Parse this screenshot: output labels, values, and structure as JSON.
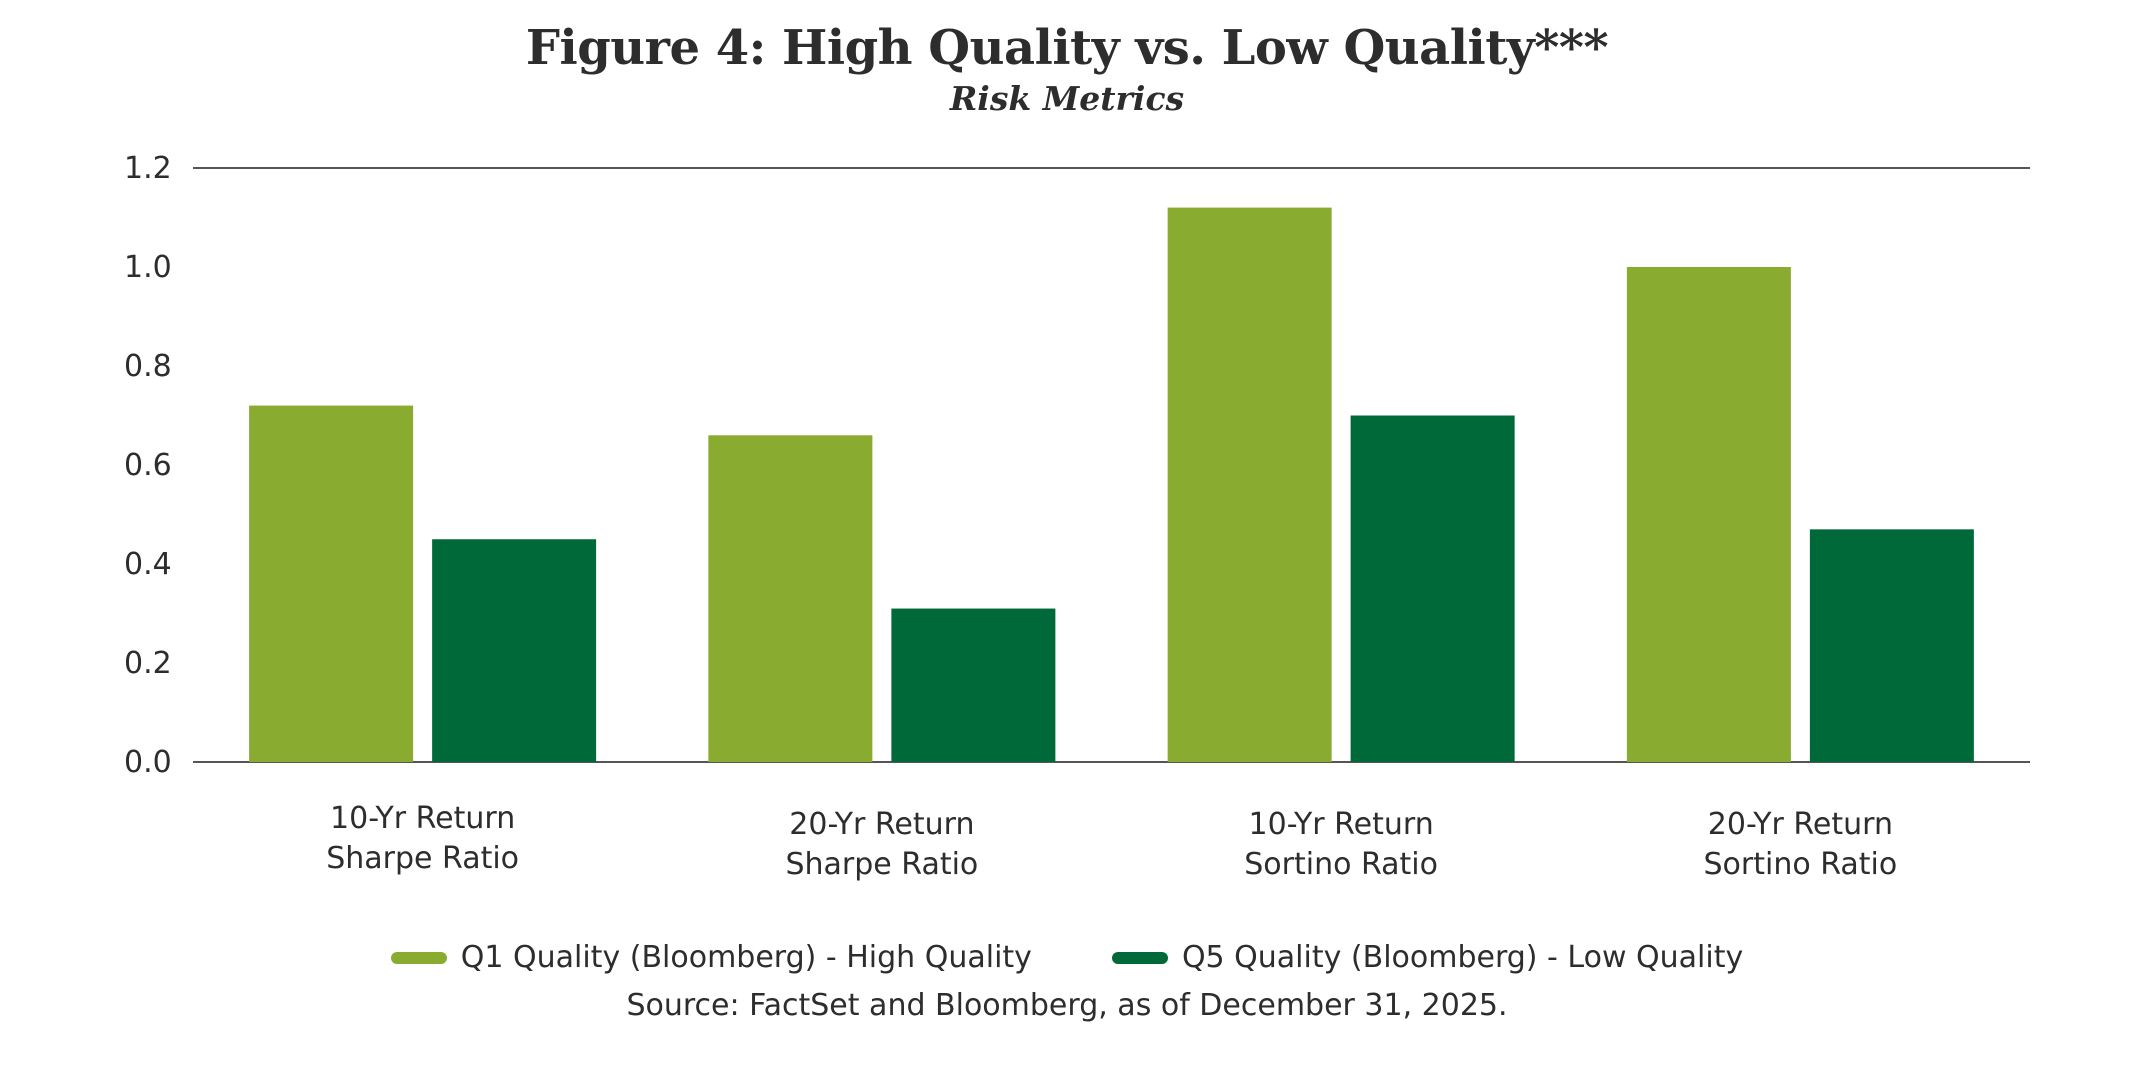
{
  "chart_data": {
    "type": "bar",
    "title": "Figure 4: High Quality vs. Low Quality***",
    "subtitle": "Risk Metrics",
    "categories": [
      [
        "10-Yr Return",
        "Sharpe Ratio"
      ],
      [
        "20-Yr Return",
        "Sharpe Ratio"
      ],
      [
        "10-Yr Return",
        "Sortino Ratio"
      ],
      [
        "20-Yr Return",
        "Sortino Ratio"
      ]
    ],
    "series": [
      {
        "name": "Q1 Quality (Bloomberg) - High Quality",
        "color": "#88ab30",
        "values": [
          0.72,
          0.66,
          1.12,
          1.0
        ]
      },
      {
        "name": "Q5 Quality (Bloomberg) - Low Quality",
        "color": "#00693a",
        "values": [
          0.45,
          0.31,
          0.7,
          0.47
        ]
      }
    ],
    "ylim": [
      0,
      1.2
    ],
    "yticks": [
      "0.0",
      "0.2",
      "0.4",
      "0.6",
      "0.8",
      "1.0",
      "1.2"
    ],
    "xlabel": "",
    "ylabel": "",
    "legend_position": "bottom",
    "source": "Source: FactSet and Bloomberg, as of December 31, 2025."
  }
}
